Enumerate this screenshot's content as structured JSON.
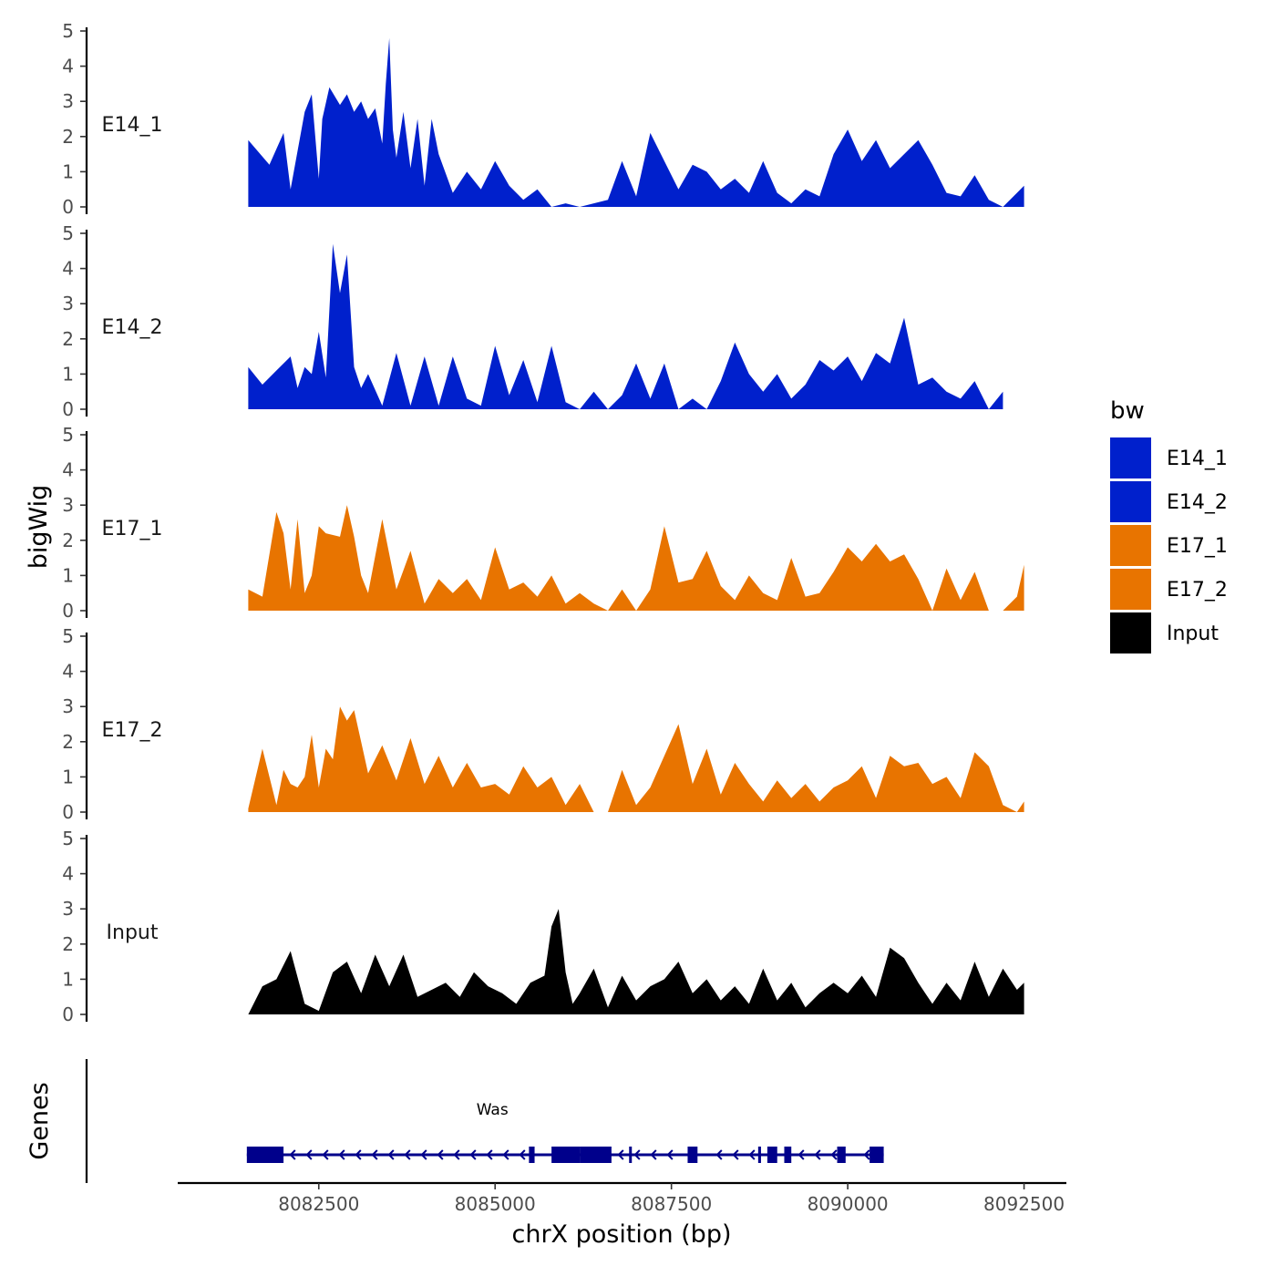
{
  "chart_data": {
    "type": "area",
    "title": "",
    "xlabel": "chrX position (bp)",
    "ylabel": "bigWig",
    "genes_label": "Genes",
    "xlim": [
      8080500,
      8093100
    ],
    "x_ticks": [
      8082500,
      8085000,
      8087500,
      8090000,
      8092500
    ],
    "x_tick_labels": [
      "8082500",
      "8085000",
      "8087500",
      "8090000",
      "8092500"
    ],
    "ylim": [
      0,
      5
    ],
    "y_ticks": [
      0,
      1,
      2,
      3,
      4,
      5
    ],
    "legend": {
      "title": "bw",
      "position": "right",
      "entries": [
        {
          "label": "E14_1",
          "color": "#0020cc"
        },
        {
          "label": "E14_2",
          "color": "#0020cc"
        },
        {
          "label": "E17_1",
          "color": "#e87400"
        },
        {
          "label": "E17_2",
          "color": "#e87400"
        },
        {
          "label": "Input",
          "color": "#000000"
        }
      ]
    },
    "series": [
      {
        "name": "E14_1",
        "color": "#0020cc",
        "x": [
          8081500,
          8081800,
          8082000,
          8082100,
          8082300,
          8082400,
          8082500,
          8082550,
          8082650,
          8082800,
          8082900,
          8083000,
          8083100,
          8083200,
          8083300,
          8083400,
          8083450,
          8083500,
          8083550,
          8083600,
          8083700,
          8083800,
          8083900,
          8084000,
          8084100,
          8084200,
          8084400,
          8084600,
          8084800,
          8085000,
          8085200,
          8085400,
          8085600,
          8085800,
          8086000,
          8086200,
          8086600,
          8086800,
          8087000,
          8087200,
          8087400,
          8087600,
          8087800,
          8088000,
          8088200,
          8088400,
          8088600,
          8088800,
          8089000,
          8089200,
          8089400,
          8089600,
          8089800,
          8090000,
          8090200,
          8090400,
          8090600,
          8090800,
          8091000,
          8091200,
          8091400,
          8091600,
          8091800,
          8092000,
          8092200,
          8092400,
          8092500
        ],
        "values": [
          1.9,
          1.2,
          2.1,
          0.5,
          2.7,
          3.2,
          0.8,
          2.5,
          3.4,
          2.9,
          3.2,
          2.7,
          3.0,
          2.5,
          2.8,
          1.8,
          3.5,
          4.8,
          2.2,
          1.4,
          2.7,
          1.1,
          2.5,
          0.6,
          2.5,
          1.5,
          0.4,
          1.0,
          0.5,
          1.3,
          0.6,
          0.2,
          0.5,
          0.0,
          0.1,
          0.0,
          0.2,
          1.3,
          0.3,
          2.1,
          1.3,
          0.5,
          1.2,
          1.0,
          0.5,
          0.8,
          0.4,
          1.3,
          0.4,
          0.1,
          0.5,
          0.3,
          1.5,
          2.2,
          1.3,
          1.9,
          1.1,
          1.5,
          1.9,
          1.2,
          0.4,
          0.3,
          0.9,
          0.2,
          0.0,
          0.4,
          0.6
        ]
      },
      {
        "name": "E14_2",
        "color": "#0020cc",
        "x": [
          8081500,
          8081700,
          8081900,
          8082100,
          8082200,
          8082300,
          8082400,
          8082500,
          8082600,
          8082700,
          8082800,
          8082900,
          8083000,
          8083100,
          8083200,
          8083400,
          8083600,
          8083800,
          8084000,
          8084200,
          8084400,
          8084600,
          8084800,
          8085000,
          8085200,
          8085400,
          8085600,
          8085800,
          8086000,
          8086200,
          8086400,
          8086600,
          8086800,
          8087000,
          8087200,
          8087400,
          8087600,
          8087800,
          8088000,
          8088200,
          8088400,
          8088600,
          8088800,
          8089000,
          8089200,
          8089400,
          8089600,
          8089800,
          8090000,
          8090200,
          8090400,
          8090600,
          8090800,
          8091000,
          8091200,
          8091400,
          8091600,
          8091800,
          8092000,
          8092200
        ],
        "values": [
          1.2,
          0.7,
          1.1,
          1.5,
          0.6,
          1.2,
          1.0,
          2.2,
          0.9,
          4.7,
          3.3,
          4.4,
          1.2,
          0.6,
          1.0,
          0.1,
          1.6,
          0.1,
          1.5,
          0.1,
          1.5,
          0.3,
          0.1,
          1.8,
          0.4,
          1.4,
          0.2,
          1.8,
          0.2,
          0.0,
          0.5,
          0.0,
          0.4,
          1.3,
          0.3,
          1.3,
          0.0,
          0.3,
          0.0,
          0.8,
          1.9,
          1.0,
          0.5,
          1.0,
          0.3,
          0.7,
          1.4,
          1.1,
          1.5,
          0.8,
          1.6,
          1.3,
          2.6,
          0.7,
          0.9,
          0.5,
          0.3,
          0.8,
          0.0,
          0.5
        ]
      },
      {
        "name": "E17_1",
        "color": "#e87400",
        "x": [
          8081500,
          8081700,
          8081900,
          8082000,
          8082100,
          8082200,
          8082300,
          8082400,
          8082500,
          8082600,
          8082800,
          8082900,
          8083000,
          8083100,
          8083200,
          8083400,
          8083600,
          8083800,
          8084000,
          8084200,
          8084400,
          8084600,
          8084800,
          8085000,
          8085200,
          8085400,
          8085600,
          8085800,
          8086000,
          8086200,
          8086400,
          8086600,
          8086800,
          8087000,
          8087200,
          8087400,
          8087600,
          8087800,
          8088000,
          8088200,
          8088400,
          8088600,
          8088800,
          8089000,
          8089200,
          8089400,
          8089600,
          8089800,
          8090000,
          8090200,
          8090400,
          8090600,
          8090800,
          8091000,
          8091200,
          8091400,
          8091600,
          8091800,
          8092000,
          8092200,
          8092400,
          8092500
        ],
        "values": [
          0.6,
          0.4,
          2.8,
          2.2,
          0.6,
          2.6,
          0.5,
          1.0,
          2.4,
          2.2,
          2.1,
          3.0,
          2.1,
          1.0,
          0.5,
          2.6,
          0.6,
          1.7,
          0.2,
          0.9,
          0.5,
          0.9,
          0.3,
          1.8,
          0.6,
          0.8,
          0.4,
          1.0,
          0.2,
          0.5,
          0.2,
          0.0,
          0.6,
          0.0,
          0.6,
          2.4,
          0.8,
          0.9,
          1.7,
          0.7,
          0.3,
          1.0,
          0.5,
          0.3,
          1.5,
          0.4,
          0.5,
          1.1,
          1.8,
          1.4,
          1.9,
          1.4,
          1.6,
          0.9,
          0.0,
          1.2,
          0.3,
          1.1,
          0.0,
          0.0,
          0.4,
          1.3
        ]
      },
      {
        "name": "E17_2",
        "color": "#e87400",
        "x": [
          8081500,
          8081700,
          8081900,
          8082000,
          8082100,
          8082200,
          8082300,
          8082400,
          8082500,
          8082600,
          8082700,
          8082800,
          8082900,
          8083000,
          8083100,
          8083200,
          8083400,
          8083600,
          8083800,
          8084000,
          8084200,
          8084400,
          8084600,
          8084800,
          8085000,
          8085200,
          8085400,
          8085600,
          8085800,
          8086000,
          8086200,
          8086400,
          8086600,
          8086800,
          8087000,
          8087200,
          8087400,
          8087600,
          8087800,
          8088000,
          8088200,
          8088400,
          8088600,
          8088800,
          8089000,
          8089200,
          8089400,
          8089600,
          8089800,
          8090000,
          8090200,
          8090400,
          8090600,
          8090800,
          8091000,
          8091200,
          8091400,
          8091600,
          8091800,
          8092000,
          8092200,
          8092400,
          8092500
        ],
        "values": [
          0.1,
          1.8,
          0.2,
          1.2,
          0.8,
          0.7,
          1.0,
          2.2,
          0.7,
          1.8,
          1.5,
          3.0,
          2.6,
          2.9,
          2.0,
          1.1,
          1.9,
          0.9,
          2.1,
          0.8,
          1.6,
          0.7,
          1.4,
          0.7,
          0.8,
          0.5,
          1.3,
          0.7,
          1.0,
          0.2,
          0.8,
          0.0,
          0.0,
          1.2,
          0.2,
          0.7,
          1.6,
          2.5,
          0.8,
          1.8,
          0.5,
          1.4,
          0.8,
          0.3,
          0.9,
          0.4,
          0.8,
          0.3,
          0.7,
          0.9,
          1.3,
          0.4,
          1.6,
          1.3,
          1.4,
          0.8,
          1.0,
          0.4,
          1.7,
          1.3,
          0.2,
          0.0,
          0.3
        ]
      },
      {
        "name": "Input",
        "color": "#000000",
        "x": [
          8081500,
          8081700,
          8081900,
          8082100,
          8082300,
          8082500,
          8082700,
          8082900,
          8083100,
          8083300,
          8083500,
          8083700,
          8083900,
          8084100,
          8084300,
          8084500,
          8084700,
          8084900,
          8085100,
          8085300,
          8085500,
          8085700,
          8085800,
          8085900,
          8086000,
          8086100,
          8086200,
          8086400,
          8086600,
          8086800,
          8087000,
          8087200,
          8087400,
          8087600,
          8087800,
          8088000,
          8088200,
          8088400,
          8088600,
          8088800,
          8089000,
          8089200,
          8089400,
          8089600,
          8089800,
          8090000,
          8090200,
          8090400,
          8090600,
          8090800,
          8091000,
          8091200,
          8091400,
          8091600,
          8091800,
          8092000,
          8092200,
          8092400,
          8092500
        ],
        "values": [
          0.0,
          0.8,
          1.0,
          1.8,
          0.3,
          0.1,
          1.2,
          1.5,
          0.6,
          1.7,
          0.8,
          1.7,
          0.5,
          0.7,
          0.9,
          0.5,
          1.2,
          0.8,
          0.6,
          0.3,
          0.9,
          1.1,
          2.5,
          3.0,
          1.2,
          0.3,
          0.6,
          1.3,
          0.2,
          1.1,
          0.4,
          0.8,
          1.0,
          1.5,
          0.6,
          1.0,
          0.4,
          0.8,
          0.3,
          1.3,
          0.4,
          0.9,
          0.2,
          0.6,
          0.9,
          0.6,
          1.1,
          0.5,
          1.9,
          1.6,
          0.9,
          0.3,
          0.9,
          0.4,
          1.5,
          0.5,
          1.3,
          0.7,
          0.9
        ]
      }
    ],
    "genes": [
      {
        "name": "Was",
        "strand": "-",
        "start": 8081480,
        "end": 8090510,
        "color": "#00008b",
        "exons": [
          [
            8081480,
            8082000
          ],
          [
            8085480,
            8085560
          ],
          [
            8085800,
            8086200
          ],
          [
            8086200,
            8086650
          ],
          [
            8086900,
            8086930
          ],
          [
            8087730,
            8087870
          ],
          [
            8088730,
            8088770
          ],
          [
            8088860,
            8089000
          ],
          [
            8089100,
            8089200
          ],
          [
            8089850,
            8089970
          ],
          [
            8090310,
            8090510
          ]
        ]
      }
    ]
  }
}
